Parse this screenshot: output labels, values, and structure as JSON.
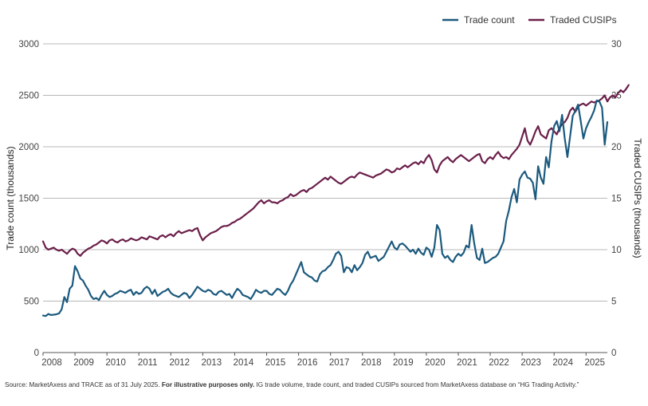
{
  "chart_data": {
    "type": "line",
    "xlabel": "",
    "ylabel_left": "Trade count (thousands)",
    "ylabel_right": "Traded CUSIPs (thousands)",
    "ylim_left": [
      0,
      3000
    ],
    "ylim_right": [
      0,
      30
    ],
    "yticks_left": [
      "0",
      "500",
      "1000",
      "1500",
      "2000",
      "2500",
      "3000"
    ],
    "yticks_right": [
      "0",
      "5",
      "10",
      "15",
      "20",
      "25",
      "30"
    ],
    "xticks": [
      "2008",
      "2009",
      "2010",
      "2011",
      "2012",
      "2013",
      "2014",
      "2015",
      "2016",
      "2017",
      "2018",
      "2019",
      "2020",
      "2021",
      "2022",
      "2023",
      "2024",
      "2025"
    ],
    "x_start_year": 2008,
    "grid": "horizontal",
    "legend_position": "top-right",
    "series": [
      {
        "name": "Trade count",
        "axis": "left",
        "color": "#1b5a7e",
        "values": [
          360,
          355,
          375,
          365,
          368,
          372,
          380,
          420,
          540,
          490,
          620,
          650,
          840,
          790,
          720,
          700,
          650,
          610,
          550,
          520,
          530,
          510,
          560,
          600,
          560,
          540,
          550,
          570,
          580,
          600,
          590,
          580,
          600,
          610,
          560,
          590,
          570,
          580,
          620,
          640,
          620,
          570,
          610,
          550,
          570,
          590,
          600,
          620,
          580,
          560,
          550,
          540,
          560,
          580,
          570,
          530,
          560,
          600,
          640,
          620,
          600,
          590,
          610,
          600,
          570,
          560,
          590,
          600,
          580,
          560,
          570,
          530,
          580,
          620,
          600,
          560,
          550,
          540,
          520,
          560,
          610,
          590,
          580,
          600,
          600,
          570,
          560,
          590,
          620,
          610,
          580,
          560,
          600,
          660,
          700,
          760,
          820,
          880,
          780,
          760,
          740,
          730,
          700,
          690,
          760,
          790,
          800,
          830,
          850,
          900,
          960,
          980,
          940,
          780,
          830,
          820,
          780,
          850,
          800,
          830,
          870,
          950,
          980,
          920,
          930,
          940,
          890,
          910,
          930,
          980,
          1030,
          1080,
          1020,
          1000,
          1050,
          1060,
          1040,
          1010,
          980,
          1000,
          960,
          1010,
          970,
          950,
          1020,
          1000,
          930,
          1020,
          1240,
          1190,
          960,
          920,
          940,
          900,
          880,
          930,
          960,
          940,
          970,
          1040,
          1020,
          1240,
          1060,
          920,
          900,
          1010,
          870,
          880,
          900,
          920,
          930,
          960,
          1020,
          1080,
          1280,
          1380,
          1510,
          1590,
          1460,
          1680,
          1730,
          1760,
          1700,
          1690,
          1650,
          1490,
          1810,
          1700,
          1640,
          1900,
          1800,
          2050,
          2200,
          2250,
          2150,
          2310,
          2080,
          1900,
          2100,
          2300,
          2350,
          2410,
          2250,
          2080,
          2180,
          2240,
          2290,
          2350,
          2450,
          2440,
          2380,
          2020,
          2240
        ]
      },
      {
        "name": "Traded CUSIPs",
        "axis": "right",
        "color": "#6b1f4a",
        "values": [
          10.8,
          10.2,
          10.0,
          10.1,
          10.2,
          10.0,
          9.9,
          10.0,
          9.8,
          9.6,
          9.9,
          10.1,
          10.0,
          9.6,
          9.4,
          9.7,
          9.9,
          10.1,
          10.2,
          10.4,
          10.5,
          10.7,
          10.9,
          10.8,
          10.6,
          10.9,
          11.0,
          10.8,
          10.7,
          10.9,
          11.0,
          10.8,
          10.9,
          11.1,
          11.0,
          10.9,
          11.0,
          11.2,
          11.1,
          11.0,
          11.3,
          11.2,
          11.1,
          11.0,
          11.3,
          11.4,
          11.2,
          11.4,
          11.5,
          11.3,
          11.6,
          11.8,
          11.6,
          11.7,
          11.8,
          11.9,
          11.8,
          12.0,
          12.1,
          11.4,
          10.9,
          11.2,
          11.4,
          11.6,
          11.7,
          11.8,
          12.0,
          12.2,
          12.3,
          12.3,
          12.4,
          12.6,
          12.7,
          12.9,
          13.0,
          13.2,
          13.4,
          13.6,
          13.8,
          14.0,
          14.3,
          14.6,
          14.8,
          14.5,
          14.7,
          14.8,
          14.6,
          14.6,
          14.5,
          14.7,
          14.8,
          15.0,
          15.1,
          15.4,
          15.2,
          15.3,
          15.5,
          15.7,
          15.8,
          15.6,
          15.9,
          16.0,
          16.2,
          16.4,
          16.6,
          16.8,
          17.0,
          16.8,
          17.1,
          16.9,
          16.7,
          16.5,
          16.4,
          16.6,
          16.8,
          17.0,
          17.1,
          17.0,
          17.3,
          17.5,
          17.4,
          17.3,
          17.2,
          17.1,
          17.0,
          17.2,
          17.3,
          17.4,
          17.6,
          17.8,
          17.7,
          17.5,
          17.6,
          17.9,
          17.8,
          18.0,
          18.2,
          18.0,
          18.2,
          18.4,
          18.5,
          18.3,
          18.6,
          18.4,
          18.9,
          19.2,
          18.7,
          17.8,
          17.5,
          18.2,
          18.6,
          18.8,
          19.0,
          18.7,
          18.5,
          18.8,
          19.0,
          19.2,
          19.0,
          18.8,
          18.6,
          18.8,
          19.0,
          19.2,
          19.3,
          18.6,
          18.4,
          18.8,
          19.0,
          18.8,
          19.2,
          19.5,
          19.1,
          18.9,
          19.0,
          18.8,
          19.2,
          19.5,
          19.8,
          20.2,
          21.0,
          21.8,
          20.6,
          20.2,
          20.8,
          21.5,
          22.0,
          21.2,
          21.0,
          20.8,
          21.6,
          21.8,
          21.5,
          21.2,
          21.8,
          22.2,
          22.4,
          22.8,
          23.5,
          23.8,
          23.4,
          23.9,
          24.1,
          24.2,
          24.0,
          24.2,
          24.4,
          24.3,
          24.4,
          24.5,
          24.7,
          25.0,
          24.4,
          24.8,
          25.0,
          24.8,
          25.2,
          25.5,
          25.3,
          25.6,
          26.0
        ]
      }
    ]
  },
  "footnote": {
    "prefix": "Source: MarketAxess and TRACE as of 31 July 2025. ",
    "bold": "For illustrative purposes only.",
    "suffix": " IG trade volume, trade count, and traded CUSIPs sourced from MarketAxess database on “HG Trading Activity.”"
  }
}
